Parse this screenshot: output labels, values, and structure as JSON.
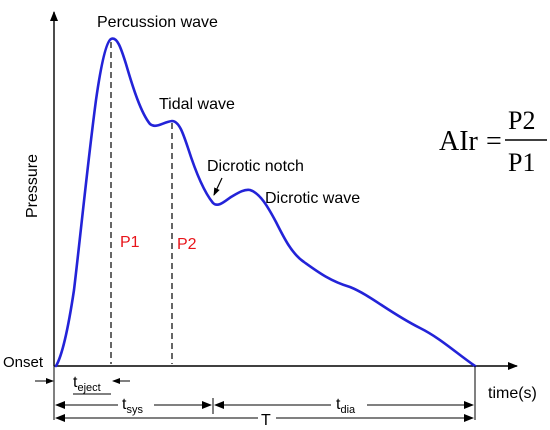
{
  "labels": {
    "percussion": "Percussion wave",
    "tidal": "Tidal wave",
    "notch": "Dicrotic notch",
    "dicrotic_wave": "Dicrotic wave",
    "p1": "P1",
    "p2": "P2",
    "onset": "Onset",
    "x_axis": "time(s)",
    "y_axis": "Pressure",
    "t_base": "t",
    "t_eject_sub": "eject",
    "t_sys_sub": "sys",
    "t_dia_sub": "dia",
    "t_total": "T"
  },
  "formula": {
    "lhs": "AIr",
    "equals": "=",
    "numerator": "P2",
    "denominator": "P1"
  },
  "colors": {
    "waveform": "#2323d8",
    "pressure_labels": "#e8141a",
    "ink": "#000000"
  }
}
